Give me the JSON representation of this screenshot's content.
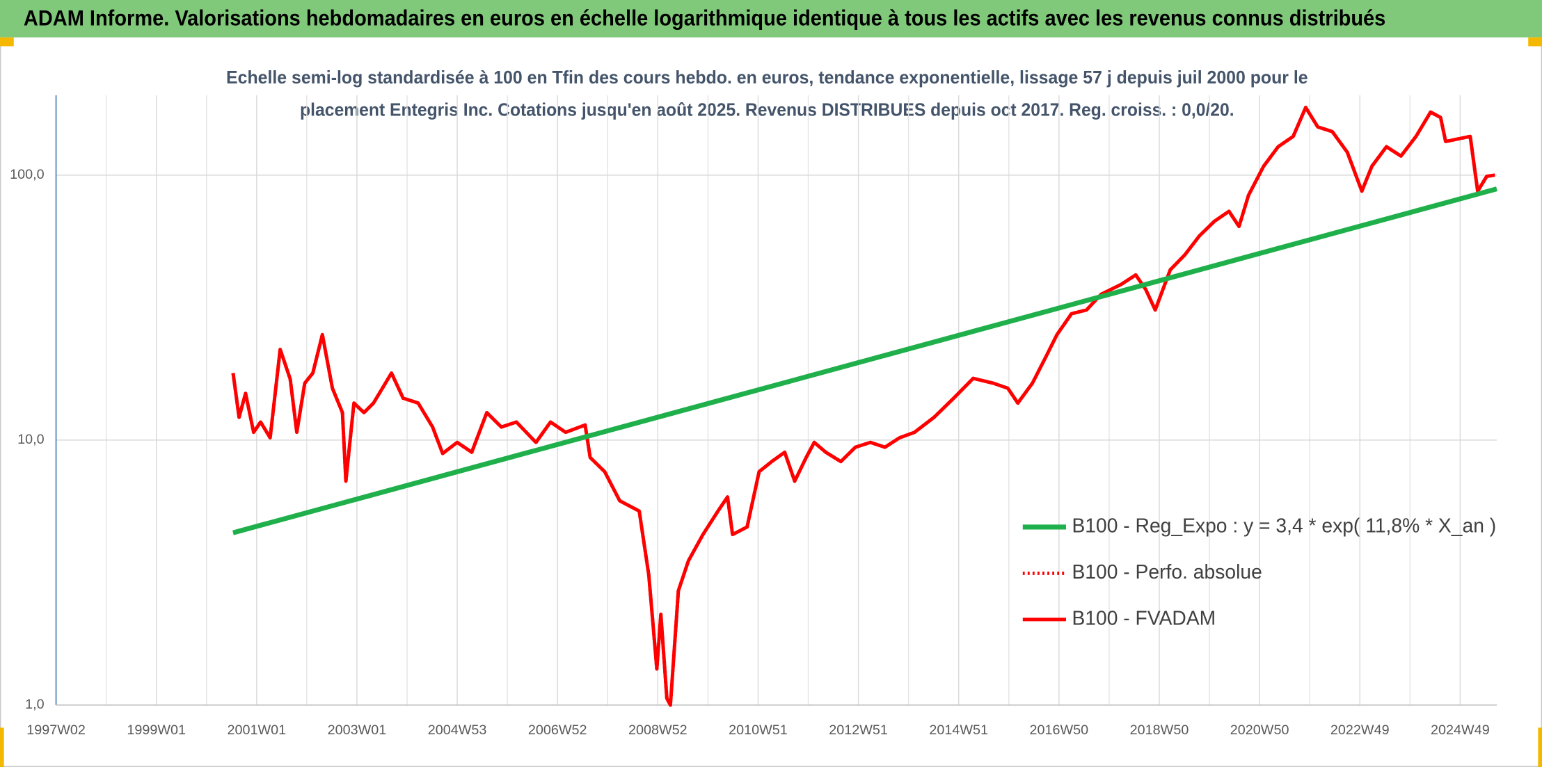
{
  "chart_data": {
    "type": "line",
    "title": "ADAM Informe. Valorisations hebdomadaires en euros en échelle logarithmique identique à tous les actifs avec les revenus connus distribués",
    "subtitle": [
      "Echelle semi-log standardisée à 100 en Tfin des cours hebdo. en euros, tendance exponentielle, lissage 57 j depuis juil 2000 pour le",
      "placement Entegris Inc. Cotations jusqu'en août 2025. Revenus DISTRIBUES depuis oct 2017. Reg. croiss. : 0,0/20."
    ],
    "xlim": [
      1997,
      2025.73
    ],
    "xticks": [
      {
        "value": 1997,
        "label": "1997W02"
      },
      {
        "value": 1999,
        "label": "1999W01"
      },
      {
        "value": 2001,
        "label": "2001W01"
      },
      {
        "value": 2003,
        "label": "2003W01"
      },
      {
        "value": 2005,
        "label": "2004W53"
      },
      {
        "value": 2007,
        "label": "2006W52"
      },
      {
        "value": 2009,
        "label": "2008W52"
      },
      {
        "value": 2011,
        "label": "2010W51"
      },
      {
        "value": 2013,
        "label": "2012W51"
      },
      {
        "value": 2015,
        "label": "2014W51"
      },
      {
        "value": 2017,
        "label": "2016W50"
      },
      {
        "value": 2019,
        "label": "2018W50"
      },
      {
        "value": 2021,
        "label": "2020W50"
      },
      {
        "value": 2023,
        "label": "2022W49"
      },
      {
        "value": 2025,
        "label": "2024W49"
      }
    ],
    "ylim": [
      1,
      200
    ],
    "log_scale": true,
    "yticks": [
      {
        "value": 1,
        "label": "1,0"
      },
      {
        "value": 10,
        "label": "10,0"
      },
      {
        "value": 100,
        "label": "100,0"
      }
    ],
    "grid": true,
    "legend": "lower right",
    "series": [
      {
        "name": "B100 - Reg_Expo : y = 3,4 * exp( 11,8% *  X_an )",
        "color": "#1fb04b",
        "style": "solid",
        "x": [
          2000.53,
          2025.73
        ],
        "values": [
          4.47,
          88.7
        ]
      },
      {
        "name": "B100 - Perfo. absolue",
        "color": "#ff0000",
        "style": "dotted",
        "x": [
          2000.53,
          2000.65,
          2000.78,
          2000.94,
          2001.08,
          2001.27,
          2001.47,
          2001.67,
          2001.8,
          2001.96,
          2002.12,
          2002.31,
          2002.51,
          2002.71,
          2002.78,
          2002.94,
          2003.14,
          2003.33,
          2003.69,
          2003.92,
          2004.22,
          2004.51,
          2004.71,
          2005.0,
          2005.29,
          2005.59,
          2005.88,
          2006.18,
          2006.57,
          2006.86,
          2007.16,
          2007.55,
          2007.65,
          2007.94,
          2008.24,
          2008.63,
          2008.82,
          2008.98,
          2009.06,
          2009.18,
          2009.25,
          2009.41,
          2009.61,
          2009.9,
          2010.2,
          2010.39,
          2010.49,
          2010.78,
          2011.02,
          2011.27,
          2011.53,
          2011.73,
          2011.96,
          2012.12,
          2012.35,
          2012.65,
          2012.94,
          2013.24,
          2013.53,
          2013.82,
          2014.12,
          2014.51,
          2014.9,
          2015.29,
          2015.69,
          2015.98,
          2016.18,
          2016.47,
          2016.76,
          2016.96,
          2017.25,
          2017.55,
          2017.84,
          2018.24,
          2018.53,
          2018.73,
          2018.92,
          2019.22,
          2019.51,
          2019.8,
          2020.1,
          2020.39,
          2020.59,
          2020.78,
          2021.08,
          2021.37,
          2021.67,
          2021.92,
          2022.16,
          2022.45,
          2022.75,
          2023.04,
          2023.24,
          2023.53,
          2023.82,
          2024.12,
          2024.41,
          2024.61,
          2024.71,
          2025.2,
          2025.35,
          2025.53,
          2025.69
        ],
        "values": [
          17.9,
          12.2,
          15,
          10.7,
          11.7,
          10.2,
          22,
          17,
          10.7,
          16.4,
          17.9,
          25,
          15.7,
          12.7,
          7,
          13.8,
          12.7,
          13.8,
          17.9,
          14.4,
          13.8,
          11.2,
          8.9,
          9.8,
          9,
          12.7,
          11.2,
          11.7,
          9.8,
          11.7,
          10.7,
          11.4,
          8.6,
          7.6,
          5.9,
          5.4,
          3.1,
          1.37,
          2.2,
          1.06,
          1,
          2.7,
          3.5,
          4.4,
          5.4,
          6.1,
          4.4,
          4.7,
          7.6,
          8.3,
          9,
          7,
          8.6,
          9.8,
          9,
          8.3,
          9.4,
          9.8,
          9.4,
          10.2,
          10.7,
          12.2,
          14.4,
          17.1,
          16.4,
          15.7,
          13.8,
          16.4,
          21,
          25,
          30,
          31,
          35.5,
          38.7,
          42,
          37,
          31,
          43.9,
          50,
          59,
          67,
          73,
          64,
          84,
          108,
          128,
          140,
          180,
          152,
          146,
          122,
          87,
          108,
          128,
          118,
          140,
          173,
          165,
          134,
          140,
          87,
          99,
          100
        ]
      },
      {
        "name": "B100 - FVADAM",
        "color": "#ff0000",
        "style": "solid",
        "x": [
          2000.53,
          2000.65,
          2000.78,
          2000.94,
          2001.08,
          2001.27,
          2001.47,
          2001.67,
          2001.8,
          2001.96,
          2002.12,
          2002.31,
          2002.51,
          2002.71,
          2002.78,
          2002.94,
          2003.14,
          2003.33,
          2003.69,
          2003.92,
          2004.22,
          2004.51,
          2004.71,
          2005.0,
          2005.29,
          2005.59,
          2005.88,
          2006.18,
          2006.57,
          2006.86,
          2007.16,
          2007.55,
          2007.65,
          2007.94,
          2008.24,
          2008.63,
          2008.82,
          2008.98,
          2009.06,
          2009.18,
          2009.25,
          2009.41,
          2009.61,
          2009.9,
          2010.2,
          2010.39,
          2010.49,
          2010.78,
          2011.02,
          2011.27,
          2011.53,
          2011.73,
          2011.96,
          2012.12,
          2012.35,
          2012.65,
          2012.94,
          2013.24,
          2013.53,
          2013.82,
          2014.12,
          2014.51,
          2014.9,
          2015.29,
          2015.69,
          2015.98,
          2016.18,
          2016.47,
          2016.76,
          2016.96,
          2017.25,
          2017.55,
          2017.84,
          2018.24,
          2018.53,
          2018.73,
          2018.92,
          2019.22,
          2019.51,
          2019.8,
          2020.1,
          2020.39,
          2020.59,
          2020.78,
          2021.08,
          2021.37,
          2021.67,
          2021.92,
          2022.16,
          2022.45,
          2022.75,
          2023.04,
          2023.24,
          2023.53,
          2023.82,
          2024.12,
          2024.41,
          2024.61,
          2024.71,
          2025.2,
          2025.35,
          2025.53,
          2025.69
        ],
        "values": [
          17.9,
          12.2,
          15,
          10.7,
          11.7,
          10.2,
          22,
          17,
          10.7,
          16.4,
          17.9,
          25,
          15.7,
          12.7,
          7,
          13.8,
          12.7,
          13.8,
          17.9,
          14.4,
          13.8,
          11.2,
          8.9,
          9.8,
          9,
          12.7,
          11.2,
          11.7,
          9.8,
          11.7,
          10.7,
          11.4,
          8.6,
          7.6,
          5.9,
          5.4,
          3.1,
          1.37,
          2.2,
          1.06,
          1,
          2.7,
          3.5,
          4.4,
          5.4,
          6.1,
          4.4,
          4.7,
          7.6,
          8.3,
          9,
          7,
          8.6,
          9.8,
          9,
          8.3,
          9.4,
          9.8,
          9.4,
          10.2,
          10.7,
          12.2,
          14.4,
          17.1,
          16.4,
          15.7,
          13.8,
          16.4,
          21,
          25,
          30,
          31,
          35.5,
          38.7,
          42,
          37,
          31,
          43.9,
          50,
          59,
          67,
          73,
          64,
          84,
          108,
          128,
          140,
          180,
          152,
          146,
          122,
          87,
          108,
          128,
          118,
          140,
          173,
          165,
          134,
          140,
          87,
          99,
          100
        ]
      }
    ]
  }
}
